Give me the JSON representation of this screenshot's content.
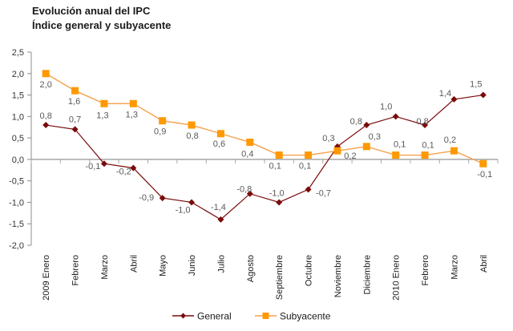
{
  "chart_data": {
    "type": "line",
    "title": "Evolución anual del IPC",
    "subtitle": "Índice general y subyacente",
    "xlabel": "",
    "ylabel": "",
    "categories": [
      "2009 Enero",
      "Febrero",
      "Marzo",
      "Abril",
      "Mayo",
      "Junio",
      "Julio",
      "Agosto",
      "Septiembre",
      "Octubre",
      "Noviembre",
      "Diciembre",
      "2010 Enero",
      "Febrero",
      "Marzo",
      "Abril"
    ],
    "ylim": [
      -2.0,
      2.5
    ],
    "yticks": [
      2.5,
      2.0,
      1.5,
      1.0,
      0.5,
      0.0,
      -0.5,
      -1.0,
      -1.5,
      -2.0
    ],
    "ytick_labels": [
      "2,5",
      "2,0",
      "1,5",
      "1,0",
      "0,5",
      "0,0",
      "-0,5",
      "-1,0",
      "-1,5",
      "-2,0"
    ],
    "grid": false,
    "legend_position": "bottom",
    "series": [
      {
        "name": "General",
        "color": "#7a0a0a",
        "marker": "diamond",
        "values": [
          0.8,
          0.7,
          -0.1,
          -0.2,
          -0.9,
          -1.0,
          -1.4,
          -0.8,
          -1.0,
          -0.7,
          0.3,
          0.8,
          1.0,
          0.8,
          1.4,
          1.5
        ],
        "labels": [
          "0,8",
          "0,7",
          "-0,1",
          "-0,2",
          "-0,9",
          "-1,0",
          "-1,4",
          "-0,8",
          "-1,0",
          "-0,7",
          "0,3",
          "0,8",
          "1,0",
          "0,8",
          "1,4",
          "1,5"
        ]
      },
      {
        "name": "Subyacente",
        "color": "#ff9900",
        "line_color": "#f7a04a",
        "marker": "square",
        "values": [
          2.0,
          1.6,
          1.3,
          1.3,
          0.9,
          0.8,
          0.6,
          0.4,
          0.1,
          0.1,
          0.2,
          0.3,
          0.1,
          0.1,
          0.2,
          -0.1
        ],
        "labels": [
          "2,0",
          "1,6",
          "1,3",
          "1,3",
          "0,9",
          "0,8",
          "0,6",
          "0,4",
          "0,1",
          "0,1",
          "0,2",
          "0,3",
          "0,1",
          "0,1",
          "0,2",
          "-0,1"
        ]
      }
    ]
  }
}
